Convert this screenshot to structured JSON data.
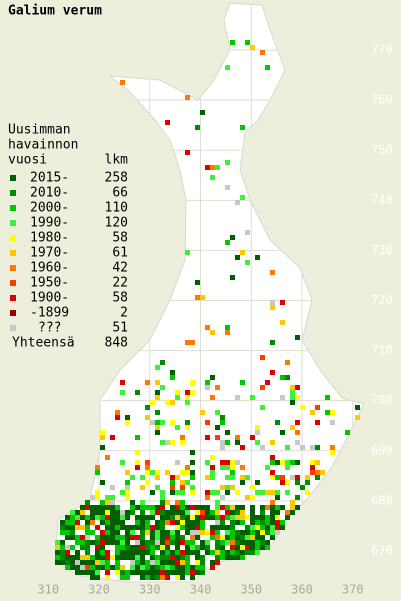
{
  "title": "Galium verum",
  "legend": {
    "title_lines": [
      "Uusimman",
      "havainnon",
      "vuosi"
    ],
    "count_header": "lkm",
    "items": [
      {
        "label": "2015-",
        "count": 258,
        "color": "#005f00"
      },
      {
        "label": "2010-",
        "count": 66,
        "color": "#008c00"
      },
      {
        "label": "2000-",
        "count": 110,
        "color": "#00c800"
      },
      {
        "label": "1990-",
        "count": 120,
        "color": "#3cf03c"
      },
      {
        "label": "1980-",
        "count": 58,
        "color": "#ffff00"
      },
      {
        "label": "1970-",
        "count": 61,
        "color": "#ffc800"
      },
      {
        "label": "1960-",
        "count": 42,
        "color": "#ff7800"
      },
      {
        "label": "1950-",
        "count": 22,
        "color": "#ff3c00"
      },
      {
        "label": "1900-",
        "count": 58,
        "color": "#dc0000"
      },
      {
        "label": "-1899",
        "count": 2,
        "color": "#960000"
      },
      {
        "label": "???",
        "count": 51,
        "color": "#c8c8c8"
      }
    ],
    "total": {
      "label": "Yhteensä",
      "count": 848
    }
  },
  "map": {
    "xlim": [
      300.5,
      379.5
    ],
    "ylim": [
      660,
      780
    ],
    "xticks": [
      310,
      320,
      330,
      340,
      350,
      360,
      370
    ],
    "yticks": [
      770,
      760,
      750,
      740,
      730,
      720,
      710,
      700,
      690,
      680,
      670
    ],
    "grid": true
  }
}
